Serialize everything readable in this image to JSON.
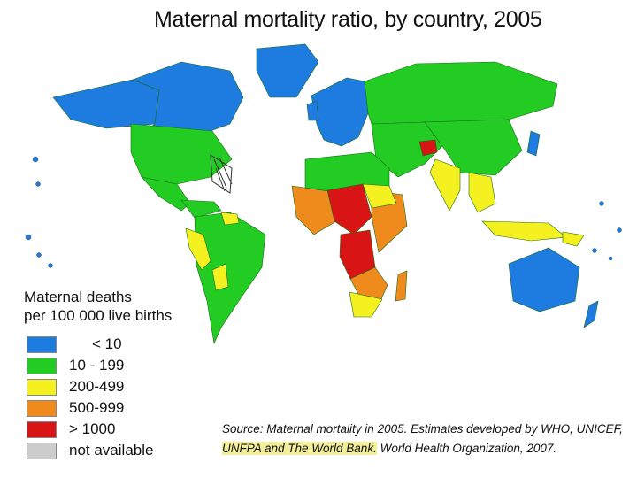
{
  "title": "Maternal mortality ratio, by country, 2005",
  "legend": {
    "title_line1": "Maternal deaths",
    "title_line2": "per 100 000 live births",
    "items": [
      {
        "label": "< 10",
        "color": "#1e7be0"
      },
      {
        "label": "10 - 199",
        "color": "#22cc22"
      },
      {
        "label": "200-499",
        "color": "#f5f020"
      },
      {
        "label": "500-999",
        "color": "#ef8a1c"
      },
      {
        "label": "> 1000",
        "color": "#d91414"
      },
      {
        "label": "not available",
        "color": "#cccccc"
      }
    ]
  },
  "source": {
    "line1": "Source: Maternal mortality in 2005. Estimates developed by WHO, UNICEF,",
    "line2_highlight": "UNFPA and The World Bank.",
    "line2_rest": " World Health Organization, 2007."
  },
  "colors": {
    "blue": "#1e7be0",
    "green": "#22cc22",
    "yellow": "#f5f020",
    "orange": "#ef8a1c",
    "red": "#d91414",
    "grey": "#cccccc"
  }
}
